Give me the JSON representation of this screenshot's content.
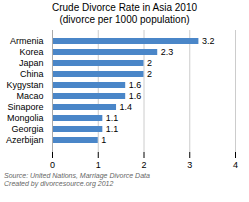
{
  "chart_data": {
    "type": "bar",
    "orientation": "horizontal",
    "title": "Crude Divorce Rate in Asia 2010\n(divorce per 1000 population)",
    "categories": [
      "Armenia",
      "Korea",
      "Japan",
      "China",
      "Kygystan",
      "Macao",
      "Sinapore",
      "Mongolia",
      "Georgia",
      "Azerbijan"
    ],
    "values": [
      3.2,
      2.3,
      2,
      2,
      1.6,
      1.6,
      1.4,
      1.1,
      1.1,
      1
    ],
    "value_labels": [
      "3.2",
      "2.3",
      "2",
      "2",
      "1.6",
      "1.6",
      "1.4",
      "1.1",
      "1.1",
      "1"
    ],
    "data_labels": true,
    "color": "#4a86c8",
    "xlim": [
      0,
      4
    ],
    "xticks": [
      0,
      1,
      2,
      3,
      4
    ],
    "grid": true,
    "annotations": [
      "Source: United Nations, Marriage Divorce Data",
      "Created by divorcesource.org  2012"
    ]
  }
}
